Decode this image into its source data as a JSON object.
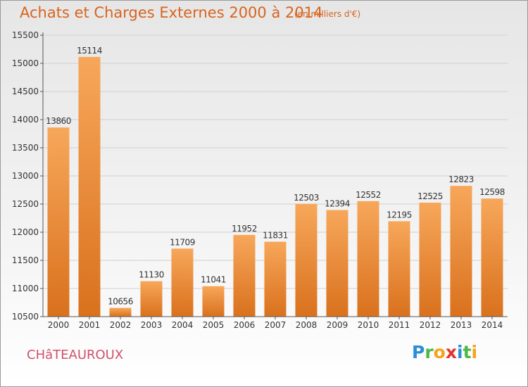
{
  "title": "Achats et Charges Externes 2000 à 2014",
  "subtitle": "(en milliers d'€)",
  "city": "CHâTEAUROUX",
  "logo": {
    "text": "Proxiti",
    "letters": [
      {
        "char": "P",
        "color": "#2a8fd6"
      },
      {
        "char": "r",
        "color": "#4cb848"
      },
      {
        "char": "o",
        "color": "#f6a21a"
      },
      {
        "char": "x",
        "color": "#e4322b"
      },
      {
        "char": "i",
        "color": "#2a8fd6"
      },
      {
        "char": "t",
        "color": "#4cb848"
      },
      {
        "char": "i",
        "color": "#f6a21a"
      }
    ]
  },
  "colors": {
    "bar_top": "#f7a75a",
    "bar_bottom": "#d9711d",
    "accent_text": "#d8641e",
    "axis": "#555555",
    "grid": "#d0d0d0"
  },
  "chart_data": {
    "type": "bar",
    "categories": [
      "2000",
      "2001",
      "2002",
      "2003",
      "2004",
      "2005",
      "2006",
      "2007",
      "2008",
      "2009",
      "2010",
      "2011",
      "2012",
      "2013",
      "2014"
    ],
    "values": [
      13860,
      15114,
      10656,
      11130,
      11709,
      11041,
      11952,
      11831,
      12503,
      12394,
      12552,
      12195,
      12525,
      12823,
      12598
    ],
    "data_labels": [
      "13860",
      "15114",
      "10656",
      "11130",
      "11709",
      "11041",
      "11952",
      "11831",
      "12503",
      "12394",
      "12552",
      "12195",
      "12525",
      "12823",
      "12598"
    ],
    "title": "Achats et Charges Externes 2000 à 2014",
    "xlabel": "",
    "ylabel": "",
    "ylim": [
      10500,
      15500
    ],
    "yticks": [
      10500,
      11000,
      11500,
      12000,
      12500,
      13000,
      13500,
      14000,
      14500,
      15000,
      15500
    ],
    "ytick_labels": [
      "10500",
      "11000",
      "11500",
      "12000",
      "12500",
      "13000",
      "13500",
      "14000",
      "14500",
      "15000",
      "15500"
    ],
    "grid": true,
    "legend": "none"
  }
}
